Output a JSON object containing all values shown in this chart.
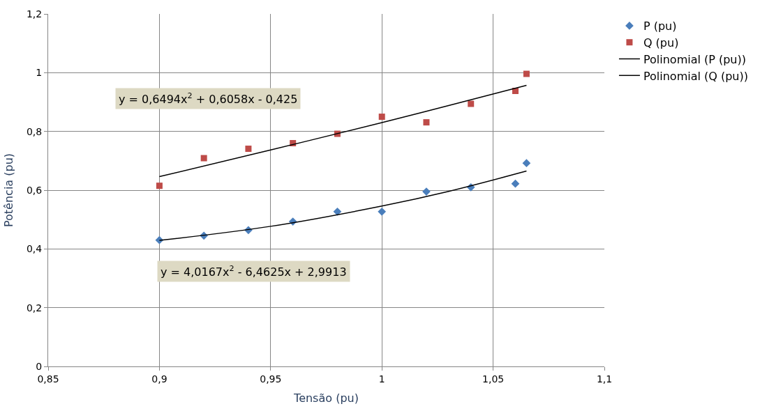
{
  "chart_data": {
    "type": "scatter",
    "xlabel": "Tensão (pu)",
    "ylabel": "Potência (pu)",
    "xlim": [
      0.85,
      1.1
    ],
    "ylim": [
      0,
      1.2
    ],
    "xticks": [
      {
        "value": 0.85,
        "label": "0,85"
      },
      {
        "value": 0.9,
        "label": "0,9"
      },
      {
        "value": 0.95,
        "label": "0,95"
      },
      {
        "value": 1,
        "label": "1"
      },
      {
        "value": 1.05,
        "label": "1,05"
      },
      {
        "value": 1.1,
        "label": "1,1"
      }
    ],
    "yticks": [
      0,
      {
        "value": 0.2,
        "label": "0,2"
      },
      {
        "value": 0.4,
        "label": "0,4"
      },
      {
        "value": 0.6,
        "label": "0,6"
      },
      {
        "value": 0.8,
        "label": "0,8"
      },
      1,
      {
        "value": 1.2,
        "label": "1,2"
      }
    ],
    "grid": true,
    "legend": "top right",
    "x": [
      0.9,
      0.92,
      0.94,
      0.96,
      0.98,
      1.0,
      1.02,
      1.04,
      1.06,
      1.065
    ],
    "series": [
      {
        "name": "P (pu)",
        "color": "#4a7ebb",
        "marker": "diamond",
        "values": [
          0.43,
          0.445,
          0.464,
          0.493,
          0.527,
          0.527,
          0.595,
          0.61,
          0.622,
          0.692
        ]
      },
      {
        "name": "Q (pu)",
        "color": "#be4b48",
        "marker": "square",
        "values": [
          0.615,
          0.709,
          0.741,
          0.76,
          0.792,
          0.85,
          0.831,
          0.894,
          0.938,
          0.996
        ]
      },
      {
        "name": "Polinomial (P (pu))",
        "type": "line",
        "color": "#000000",
        "marker": "none",
        "x": [
          0.9,
          0.95,
          1.0,
          1.03,
          1.065
        ],
        "values": [
          0.429,
          0.477,
          0.546,
          0.596,
          0.665
        ]
      },
      {
        "name": "Polinomial (Q (pu))",
        "type": "line",
        "color": "#000000",
        "marker": "none",
        "x": [
          0.9,
          0.95,
          1.0,
          1.03,
          1.065
        ],
        "values": [
          0.646,
          0.737,
          0.83,
          0.888,
          0.957
        ]
      }
    ],
    "annotations": [
      "y = 0,6494x$^{2}$ + 0,6058x - 0,425",
      "y = 4,0167x$^{2}$ - 6,4625x + 2,9913"
    ]
  }
}
